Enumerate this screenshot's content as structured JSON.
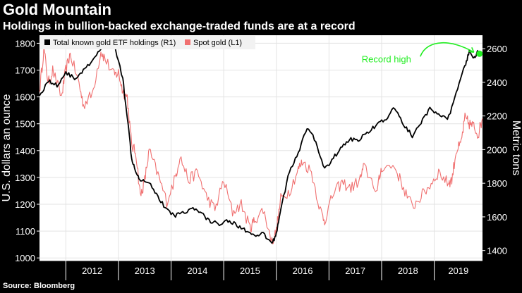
{
  "title": "Gold Mountain",
  "subtitle": "Holdings in bullion-backed exchange-traded funds are at a record",
  "source": "Source: Bloomberg",
  "colors": {
    "background": "#000000",
    "spot_gold": "#f07070",
    "etf": "#000000",
    "annotation": "#22ee22",
    "grid": "#e0e0e0"
  },
  "chart_data": {
    "type": "line",
    "x_range": [
      "2011-07",
      "2019-12"
    ],
    "x_tick_labels": [
      "2012",
      "2013",
      "2014",
      "2015",
      "2016",
      "2017",
      "2018",
      "2019"
    ],
    "y_left": {
      "label": "U.S. dollars an ounce",
      "ticks": [
        "1000",
        "1100",
        "1200",
        "1300",
        "1400",
        "1500",
        "1600",
        "1700",
        "1800"
      ],
      "ylim": [
        990,
        1830
      ]
    },
    "y_right": {
      "label": "Metric tons",
      "ticks": [
        "1400",
        "1600",
        "1800",
        "2000",
        "2200",
        "2400",
        "2600"
      ],
      "ylim": [
        1340,
        2680
      ]
    },
    "legend": {
      "placement": "top-left"
    },
    "annotations": [
      {
        "text": "Record high",
        "x": "2019-11",
        "y": 2570,
        "axis": "right"
      }
    ],
    "series": [
      {
        "name": "Total known gold ETF holdings (R1)",
        "axis": "right",
        "x": [
          "2011-07",
          "2011-09",
          "2011-11",
          "2012-01",
          "2012-03",
          "2012-05",
          "2012-07",
          "2012-09",
          "2012-10",
          "2012-12",
          "2013-02",
          "2013-03",
          "2013-04",
          "2013-05",
          "2013-06",
          "2013-08",
          "2013-10",
          "2013-12",
          "2014-02",
          "2014-04",
          "2014-06",
          "2014-08",
          "2014-10",
          "2014-12",
          "2015-02",
          "2015-04",
          "2015-06",
          "2015-08",
          "2015-10",
          "2015-12",
          "2016-01",
          "2016-02",
          "2016-04",
          "2016-06",
          "2016-08",
          "2016-10",
          "2016-12",
          "2017-02",
          "2017-04",
          "2017-06",
          "2017-08",
          "2017-10",
          "2017-12",
          "2018-02",
          "2018-04",
          "2018-06",
          "2018-08",
          "2018-10",
          "2018-12",
          "2019-02",
          "2019-04",
          "2019-06",
          "2019-08",
          "2019-09",
          "2019-10",
          "2019-11"
        ],
        "values": [
          2320,
          2410,
          2380,
          2460,
          2420,
          2470,
          2520,
          2600,
          2650,
          2630,
          2420,
          2200,
          1950,
          1870,
          1820,
          1810,
          1720,
          1640,
          1610,
          1630,
          1650,
          1620,
          1570,
          1560,
          1580,
          1550,
          1520,
          1480,
          1500,
          1440,
          1500,
          1650,
          1870,
          1980,
          2130,
          2050,
          1880,
          1950,
          2020,
          2060,
          2060,
          2110,
          2150,
          2180,
          2250,
          2150,
          2080,
          2160,
          2240,
          2220,
          2170,
          2330,
          2500,
          2580,
          2540,
          2590
        ]
      },
      {
        "name": "Spot gold (L1)",
        "axis": "left",
        "x": [
          "2011-07",
          "2011-08",
          "2011-09",
          "2011-10",
          "2011-12",
          "2012-01",
          "2012-02",
          "2012-04",
          "2012-05",
          "2012-07",
          "2012-09",
          "2012-10",
          "2012-12",
          "2013-01",
          "2013-02",
          "2013-03",
          "2013-04",
          "2013-05",
          "2013-06",
          "2013-07",
          "2013-08",
          "2013-10",
          "2013-12",
          "2014-02",
          "2014-03",
          "2014-05",
          "2014-07",
          "2014-09",
          "2014-11",
          "2015-01",
          "2015-03",
          "2015-05",
          "2015-07",
          "2015-08",
          "2015-10",
          "2015-12",
          "2016-01",
          "2016-02",
          "2016-04",
          "2016-06",
          "2016-07",
          "2016-09",
          "2016-11",
          "2016-12",
          "2017-02",
          "2017-04",
          "2017-06",
          "2017-08",
          "2017-09",
          "2017-12",
          "2018-01",
          "2018-04",
          "2018-06",
          "2018-08",
          "2018-10",
          "2018-12",
          "2019-02",
          "2019-04",
          "2019-05",
          "2019-06",
          "2019-07",
          "2019-08",
          "2019-09",
          "2019-10",
          "2019-11",
          "2019-12"
        ],
        "values": [
          1620,
          1780,
          1650,
          1700,
          1600,
          1700,
          1760,
          1650,
          1570,
          1610,
          1770,
          1740,
          1680,
          1690,
          1620,
          1600,
          1420,
          1390,
          1230,
          1290,
          1400,
          1310,
          1210,
          1300,
          1380,
          1290,
          1320,
          1230,
          1180,
          1290,
          1170,
          1200,
          1110,
          1140,
          1180,
          1060,
          1100,
          1220,
          1250,
          1330,
          1360,
          1320,
          1180,
          1140,
          1240,
          1280,
          1260,
          1290,
          1340,
          1250,
          1340,
          1340,
          1260,
          1190,
          1230,
          1270,
          1320,
          1280,
          1290,
          1400,
          1420,
          1520,
          1500,
          1490,
          1460,
          1520
        ]
      }
    ]
  }
}
